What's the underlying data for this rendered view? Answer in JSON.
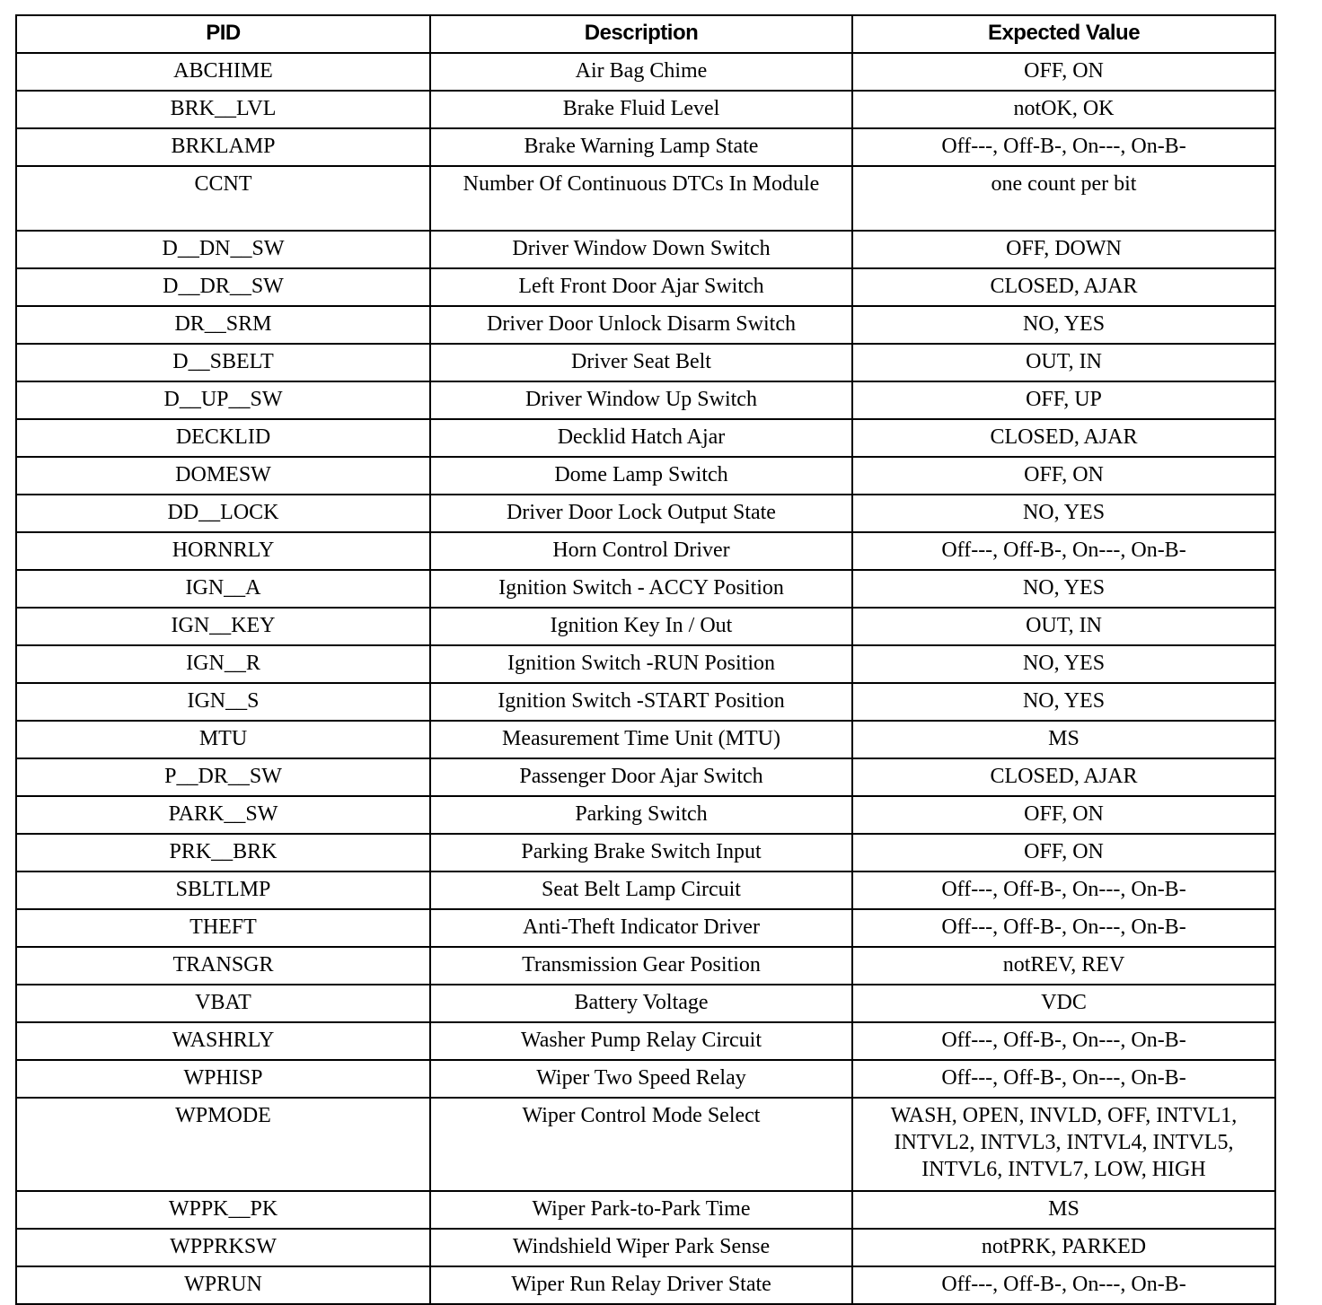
{
  "table": {
    "headers": [
      "PID",
      "Description",
      "Expected Value"
    ],
    "rows": [
      [
        "ABCHIME",
        "Air Bag Chime",
        "OFF, ON"
      ],
      [
        "BRK__LVL",
        "Brake Fluid Level",
        "notOK, OK"
      ],
      [
        "BRKLAMP",
        "Brake Warning Lamp State",
        "Off---, Off-B-, On---, On-B-"
      ],
      [
        "CCNT",
        "Number Of Continuous DTCs In Module",
        "one count per bit"
      ],
      [
        "D__DN__SW",
        "Driver Window Down Switch",
        "OFF, DOWN"
      ],
      [
        "D__DR__SW",
        "Left Front Door Ajar Switch",
        "CLOSED, AJAR"
      ],
      [
        "DR__SRM",
        "Driver Door Unlock Disarm Switch",
        "NO, YES"
      ],
      [
        "D__SBELT",
        "Driver Seat Belt",
        "OUT, IN"
      ],
      [
        "D__UP__SW",
        "Driver Window Up Switch",
        "OFF, UP"
      ],
      [
        "DECKLID",
        "Decklid Hatch Ajar",
        "CLOSED, AJAR"
      ],
      [
        "DOMESW",
        "Dome Lamp Switch",
        "OFF, ON"
      ],
      [
        "DD__LOCK",
        "Driver Door Lock Output State",
        "NO, YES"
      ],
      [
        "HORNRLY",
        "Horn Control Driver",
        "Off---, Off-B-, On---, On-B-"
      ],
      [
        "IGN__A",
        "Ignition Switch - ACCY Position",
        "NO, YES"
      ],
      [
        "IGN__KEY",
        "Ignition Key In / Out",
        "OUT, IN"
      ],
      [
        "IGN__R",
        "Ignition Switch -RUN Position",
        "NO, YES"
      ],
      [
        "IGN__S",
        "Ignition Switch -START Position",
        "NO, YES"
      ],
      [
        "MTU",
        "Measurement Time Unit (MTU)",
        "MS"
      ],
      [
        "P__DR__SW",
        "Passenger Door Ajar Switch",
        "CLOSED, AJAR"
      ],
      [
        "PARK__SW",
        "Parking Switch",
        "OFF, ON"
      ],
      [
        "PRK__BRK",
        "Parking Brake Switch Input",
        "OFF, ON"
      ],
      [
        "SBLTLMP",
        "Seat Belt Lamp Circuit",
        "Off---, Off-B-, On---, On-B-"
      ],
      [
        "THEFT",
        "Anti-Theft Indicator Driver",
        "Off---, Off-B-, On---, On-B-"
      ],
      [
        "TRANSGR",
        "Transmission Gear Position",
        "notREV, REV"
      ],
      [
        "VBAT",
        "Battery Voltage",
        "VDC"
      ],
      [
        "WASHRLY",
        "Washer Pump Relay Circuit",
        "Off---, Off-B-, On---, On-B-"
      ],
      [
        "WPHISP",
        "Wiper Two Speed Relay",
        "Off---, Off-B-, On---, On-B-"
      ],
      [
        "WPMODE",
        "Wiper Control Mode Select",
        "WASH, OPEN, INVLD, OFF, INTVL1, INTVL2, INTVL3, INTVL4, INTVL5, INTVL6, INTVL7, LOW, HIGH"
      ],
      [
        "WPPK__PK",
        "Wiper Park-to-Park Time",
        "MS"
      ],
      [
        "WPPRKSW",
        "Windshield Wiper Park Sense",
        "notPRK, PARKED"
      ],
      [
        "WPRUN",
        "Wiper Run Relay Driver State",
        "Off---, Off-B-, On---, On-B-"
      ]
    ]
  }
}
